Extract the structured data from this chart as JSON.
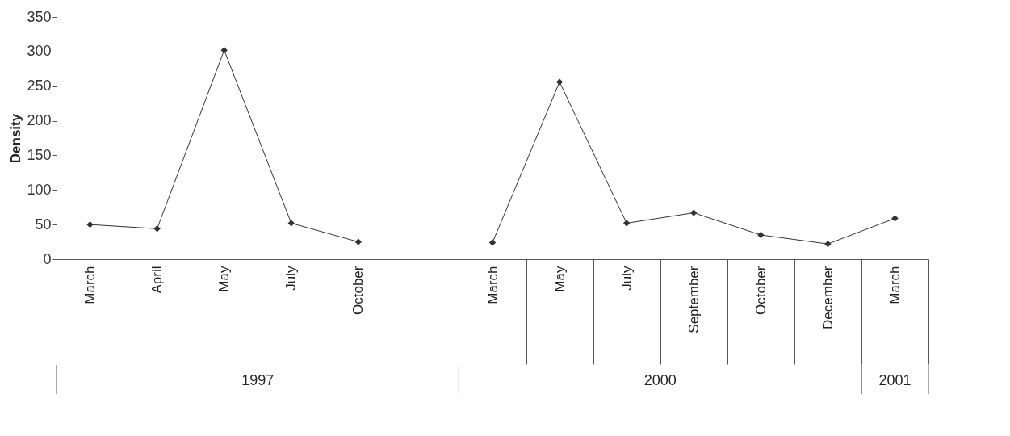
{
  "chart_data": {
    "type": "line",
    "ylabel": "Density",
    "categories": [
      "March",
      "April",
      "May",
      "July",
      "October",
      null,
      "March",
      "May",
      "July",
      "September",
      "October",
      "December",
      "March"
    ],
    "series": [
      {
        "color": "#333333",
        "values": [
          50,
          44,
          302,
          52,
          25,
          null,
          24,
          256,
          52,
          67,
          35,
          22,
          59
        ]
      }
    ],
    "ylim": [
      0,
      350
    ],
    "yticks": [
      0,
      50,
      100,
      150,
      200,
      250,
      300,
      350
    ],
    "grid": false,
    "marker": "diamond",
    "line_style": "solid",
    "annotations": [
      "1997",
      "2000",
      "2001"
    ]
  }
}
